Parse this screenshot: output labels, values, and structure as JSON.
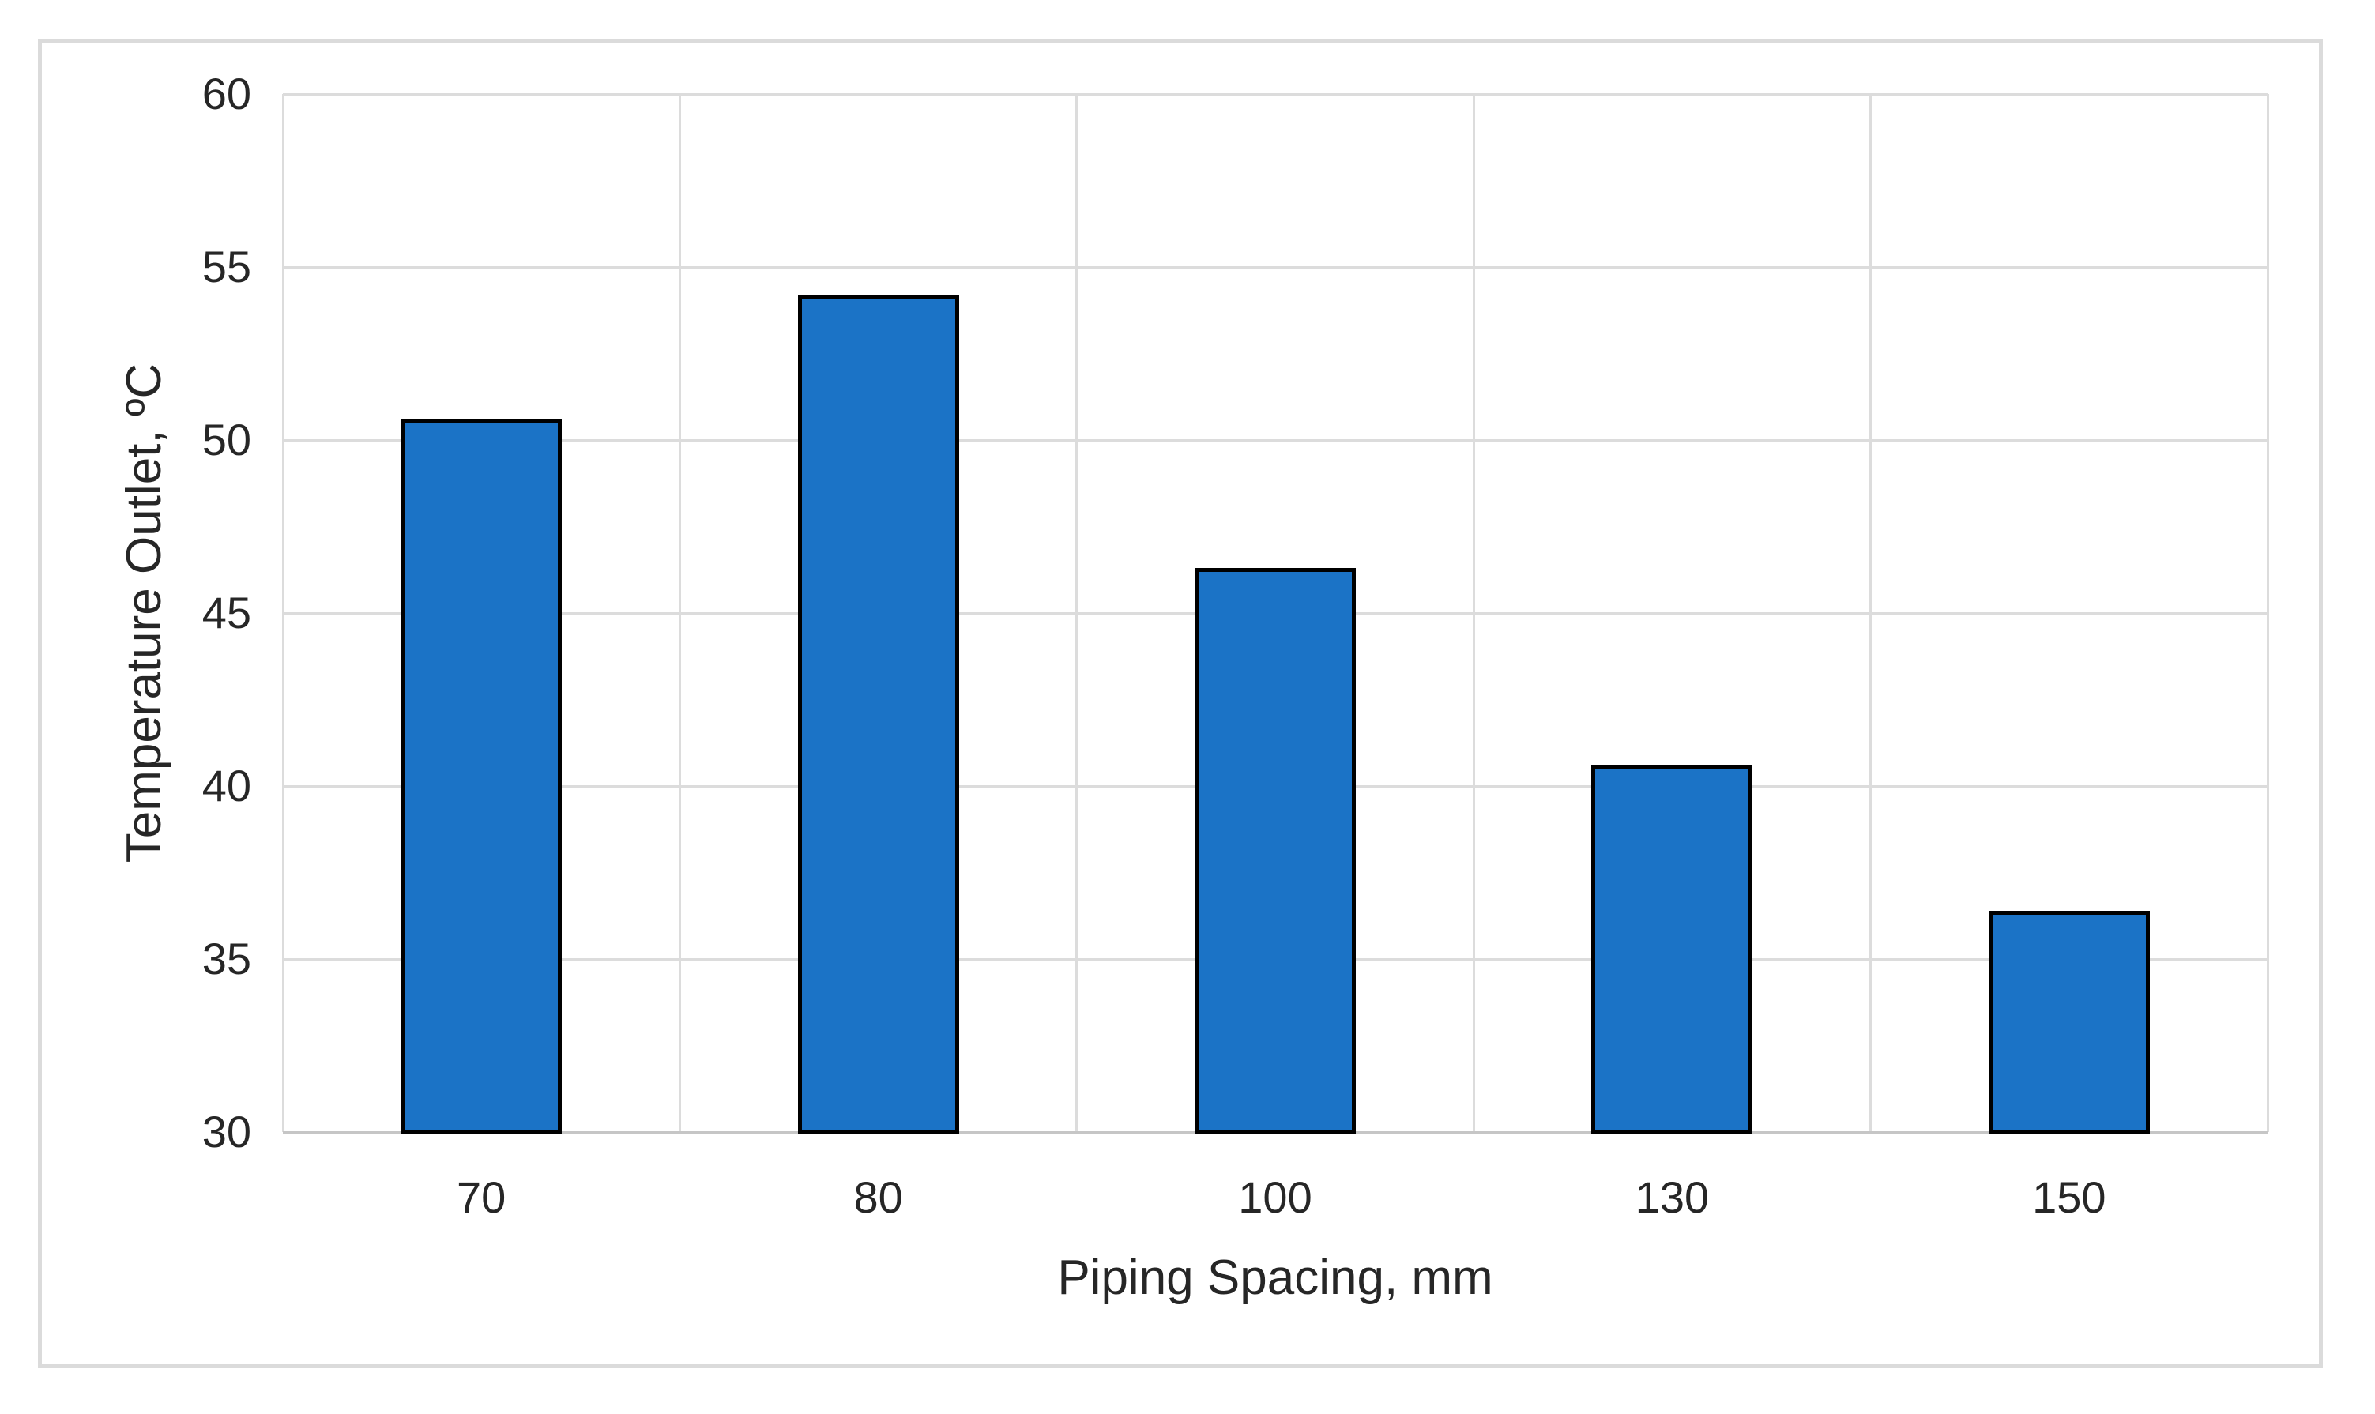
{
  "chart_data": {
    "type": "bar",
    "categories": [
      "70",
      "80",
      "100",
      "130",
      "150"
    ],
    "values": [
      50.6,
      54.2,
      46.3,
      40.6,
      36.4
    ],
    "series_name": "Temperature Outlet",
    "title": "",
    "xlabel": "Piping Spacing, mm",
    "ylabel": "Temperature Outlet, ºC",
    "ylim": [
      30,
      60
    ],
    "yticks": [
      30,
      35,
      40,
      45,
      50,
      55,
      60
    ],
    "ytick_labels": [
      "30",
      "35",
      "40",
      "45",
      "50",
      "55",
      "60"
    ],
    "grid": "horizontal major gridlines plus vertical category-boundary gridlines",
    "legend_position": "none",
    "colors": {
      "bar_fill": "#1b73c6",
      "bar_border": "#000000",
      "gridline": "#dcdcdc",
      "axis_line": "#c6c6c6",
      "text": "#262626",
      "figure_border": "#dbdbdb",
      "background": "#ffffff"
    }
  }
}
